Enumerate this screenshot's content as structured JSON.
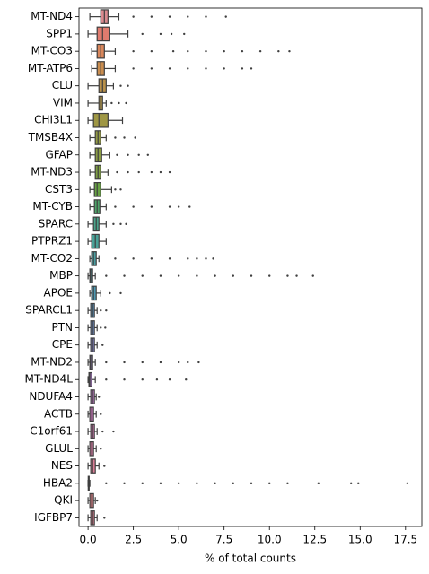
{
  "chart_data": {
    "type": "box",
    "xlabel": "% of total counts",
    "xlim": [
      -0.5,
      18.4
    ],
    "xticks": [
      {
        "value": 0,
        "label": "0.0"
      },
      2.5,
      {
        "value": 5,
        "label": "5.0"
      },
      7.5,
      {
        "value": 10,
        "label": "10.0"
      },
      12.5,
      {
        "value": 15,
        "label": "15.0"
      },
      17.5
    ],
    "categories": [
      "MT-ND4",
      "SPP1",
      "MT-CO3",
      "MT-ATP6",
      "CLU",
      "VIM",
      "CHI3L1",
      "TMSB4X",
      "GFAP",
      "MT-ND3",
      "CST3",
      "MT-CYB",
      "SPARC",
      "PTPRZ1",
      "MT-CO2",
      "MBP",
      "APOE",
      "SPARCL1",
      "PTN",
      "CPE",
      "MT-ND2",
      "MT-ND4L",
      "NDUFA4",
      "ACTB",
      "C1orf61",
      "GLUL",
      "NES",
      "HBA2",
      "QKI",
      "IGFBP7"
    ],
    "colors": [
      "#d98a8f",
      "#e07b6e",
      "#d9875c",
      "#c98d4f",
      "#b9914a",
      "#ad9448",
      "#9f9744",
      "#939a44",
      "#8a9c44",
      "#7e9e44",
      "#68a244",
      "#4fa46a",
      "#4aa38a",
      "#49a197",
      "#4a9fa1",
      "#4c9ca9",
      "#4e99b3",
      "#5a95c0",
      "#6f8fcb",
      "#8a8ad2",
      "#a084d4",
      "#b67fd4",
      "#c77bcf",
      "#d57ac4",
      "#d97ab5",
      "#dc7ca6",
      "#dd7e97",
      "#d98a8f",
      "#df7f85",
      "#de7d90"
    ],
    "boxes": [
      {
        "whislo": 0.1,
        "q1": 0.7,
        "med": 0.9,
        "q3": 1.1,
        "whishi": 1.7,
        "fliers": [
          2.5,
          3.5,
          4.5,
          5.5,
          6.5,
          7.6
        ]
      },
      {
        "whislo": 0.0,
        "q1": 0.5,
        "med": 0.8,
        "q3": 1.2,
        "whishi": 2.2,
        "fliers": [
          3,
          4,
          4.6,
          5.3
        ]
      },
      {
        "whislo": 0.2,
        "q1": 0.5,
        "med": 0.7,
        "q3": 0.9,
        "whishi": 1.5,
        "fliers": [
          2.5,
          3.5,
          4.7,
          5.5,
          6.5,
          7.5,
          8.5,
          9.5,
          10.5,
          11.1
        ]
      },
      {
        "whislo": 0.2,
        "q1": 0.5,
        "med": 0.7,
        "q3": 0.9,
        "whishi": 1.5,
        "fliers": [
          2.5,
          3.5,
          4.5,
          5.5,
          6.5,
          7.5,
          8.5,
          9
        ]
      },
      {
        "whislo": 0.0,
        "q1": 0.6,
        "med": 0.8,
        "q3": 1.0,
        "whishi": 1.4,
        "fliers": [
          1.8,
          2.2
        ]
      },
      {
        "whislo": 0.0,
        "q1": 0.6,
        "med": 0.7,
        "q3": 0.8,
        "whishi": 1.0,
        "fliers": [
          1.3,
          1.7,
          2.1
        ]
      },
      {
        "whislo": 0.0,
        "q1": 0.3,
        "med": 0.6,
        "q3": 1.1,
        "whishi": 1.9,
        "fliers": []
      },
      {
        "whislo": 0.1,
        "q1": 0.4,
        "med": 0.55,
        "q3": 0.7,
        "whishi": 1.0,
        "fliers": [
          1.5,
          2.0,
          2.6
        ]
      },
      {
        "whislo": 0.1,
        "q1": 0.4,
        "med": 0.55,
        "q3": 0.75,
        "whishi": 1.2,
        "fliers": [
          1.6,
          2.2,
          2.8,
          3.3
        ]
      },
      {
        "whislo": 0.1,
        "q1": 0.4,
        "med": 0.55,
        "q3": 0.7,
        "whishi": 1.1,
        "fliers": [
          1.6,
          2.2,
          2.8,
          3.5,
          4.0,
          4.5
        ]
      },
      {
        "whislo": 0.1,
        "q1": 0.35,
        "med": 0.5,
        "q3": 0.7,
        "whishi": 1.3,
        "fliers": [
          1.5,
          1.8
        ]
      },
      {
        "whislo": 0.1,
        "q1": 0.35,
        "med": 0.5,
        "q3": 0.65,
        "whishi": 1.0,
        "fliers": [
          1.5,
          2.5,
          3.5,
          4.5,
          5.0,
          5.6
        ]
      },
      {
        "whislo": 0.0,
        "q1": 0.3,
        "med": 0.45,
        "q3": 0.6,
        "whishi": 1.0,
        "fliers": [
          1.4,
          1.8,
          2.1
        ]
      },
      {
        "whislo": 0.0,
        "q1": 0.2,
        "med": 0.4,
        "q3": 0.6,
        "whishi": 1.0,
        "fliers": []
      },
      {
        "whislo": 0.1,
        "q1": 0.2,
        "med": 0.3,
        "q3": 0.45,
        "whishi": 0.6,
        "fliers": [
          1.5,
          2.5,
          3.5,
          4.5,
          5.5,
          6.0,
          6.5,
          6.9
        ]
      },
      {
        "whislo": 0.0,
        "q1": 0.1,
        "med": 0.15,
        "q3": 0.25,
        "whishi": 0.4,
        "fliers": [
          1,
          2,
          3,
          4,
          5,
          6,
          7,
          8,
          9,
          10,
          11,
          11.5,
          12.4
        ]
      },
      {
        "whislo": 0.1,
        "q1": 0.2,
        "med": 0.3,
        "q3": 0.45,
        "whishi": 0.7,
        "fliers": [
          1.2,
          1.8
        ]
      },
      {
        "whislo": 0.0,
        "q1": 0.15,
        "med": 0.25,
        "q3": 0.35,
        "whishi": 0.5,
        "fliers": [
          0.7,
          1.0
        ]
      },
      {
        "whislo": 0.0,
        "q1": 0.15,
        "med": 0.25,
        "q3": 0.35,
        "whishi": 0.5,
        "fliers": [
          0.7,
          0.95
        ]
      },
      {
        "whislo": 0.0,
        "q1": 0.15,
        "med": 0.25,
        "q3": 0.35,
        "whishi": 0.5,
        "fliers": [
          0.8
        ]
      },
      {
        "whislo": 0.0,
        "q1": 0.1,
        "med": 0.15,
        "q3": 0.25,
        "whishi": 0.4,
        "fliers": [
          1,
          2,
          3,
          4,
          5,
          5.5,
          6.1
        ]
      },
      {
        "whislo": 0.0,
        "q1": 0.05,
        "med": 0.1,
        "q3": 0.2,
        "whishi": 0.4,
        "fliers": [
          1,
          2,
          3,
          3.8,
          4.5,
          5.4
        ]
      },
      {
        "whislo": 0.0,
        "q1": 0.15,
        "med": 0.25,
        "q3": 0.35,
        "whishi": 0.45,
        "fliers": [
          0.6
        ]
      },
      {
        "whislo": 0.0,
        "q1": 0.1,
        "med": 0.2,
        "q3": 0.3,
        "whishi": 0.45,
        "fliers": [
          0.7
        ]
      },
      {
        "whislo": 0.0,
        "q1": 0.15,
        "med": 0.25,
        "q3": 0.35,
        "whishi": 0.5,
        "fliers": [
          0.8,
          1.4
        ]
      },
      {
        "whislo": 0.0,
        "q1": 0.1,
        "med": 0.2,
        "q3": 0.3,
        "whishi": 0.45,
        "fliers": [
          0.7
        ]
      },
      {
        "whislo": 0.0,
        "q1": 0.15,
        "med": 0.25,
        "q3": 0.4,
        "whishi": 0.6,
        "fliers": [
          0.9
        ]
      },
      {
        "whislo": 0.0,
        "q1": 0.01,
        "med": 0.03,
        "q3": 0.06,
        "whishi": 0.1,
        "fliers": [
          1,
          2,
          3,
          4,
          5,
          6,
          7,
          8,
          9,
          10,
          11,
          12.7,
          14.5,
          14.9,
          17.6
        ]
      },
      {
        "whislo": 0.0,
        "q1": 0.1,
        "med": 0.2,
        "q3": 0.3,
        "whishi": 0.4,
        "fliers": [
          0.5
        ]
      },
      {
        "whislo": 0.0,
        "q1": 0.15,
        "med": 0.25,
        "q3": 0.35,
        "whishi": 0.5,
        "fliers": [
          0.9
        ]
      }
    ]
  }
}
